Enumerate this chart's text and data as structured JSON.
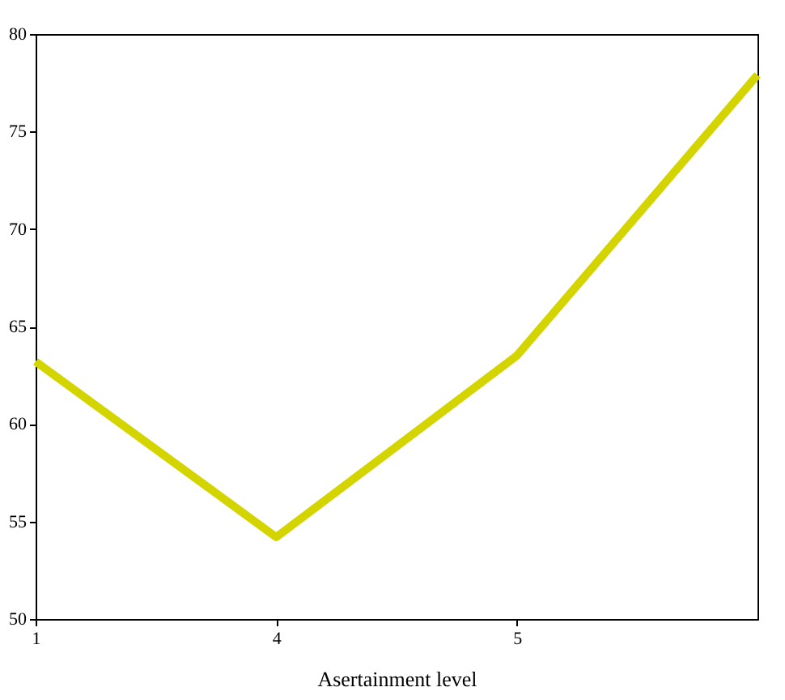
{
  "chart_data": {
    "type": "line",
    "xlabel": "Asertainment level",
    "categories": [
      "1",
      "4",
      "5",
      null
    ],
    "series": [
      {
        "color": "#d4d400",
        "values": [
          63.2,
          54.2,
          63.5,
          77.9
        ]
      }
    ],
    "ylim": [
      50,
      80
    ],
    "yticks": [
      50,
      55,
      60,
      65,
      70,
      75,
      80
    ],
    "grid": false,
    "marker": "none",
    "line_style": "solid"
  }
}
